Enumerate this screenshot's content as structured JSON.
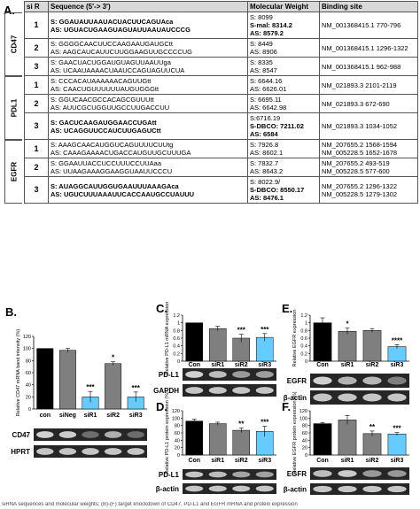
{
  "panel_labels": {
    "A": "A.",
    "B": "B.",
    "C": "C.",
    "D": "D.",
    "E": "E.",
    "F": "F."
  },
  "table": {
    "headers": [
      "si R",
      "Sequence (5'-> 3')",
      "Molecular Weight",
      "Binding site"
    ],
    "groups": [
      {
        "gene": "CD47",
        "rows": [
          {
            "n": "1",
            "s": "S: GGAUAUUAAUACUACUUCAGUAca",
            "as": "AS: UGUACUGAAGUAGUAUUAAUAUCCCG",
            "mw": [
              "S: 8099",
              "S-mal: 8314.2",
              "AS: 8579.2"
            ],
            "site": "NM_001368415.1 770-796",
            "bold": true
          },
          {
            "n": "2",
            "s": "S: GGGGCAACUUCCAAGAAUGAUGCtt",
            "as": "AS: AAGCAUCAUUCUUGGAAGUUGCCCCUG",
            "mw": [
              "S: 8449",
              "AS: 8906"
            ],
            "site": "NM_001368415.1 1296-1322",
            "bold": false
          },
          {
            "n": "3",
            "s": "S: GAACUACUGGAUGUAGUUAAUUga",
            "as": "AS: UCAAUAAAACUAAUCCAGUAGUUCUA",
            "mw": [
              "S: 8335",
              "AS: 8547"
            ],
            "site": "NM_001368415.1 962-988",
            "bold": false
          }
        ]
      },
      {
        "gene": "PDL1",
        "rows": [
          {
            "n": "1",
            "s": "S: CCCACAUAAAAAACAGUUGtt",
            "as": "AS: CAACUGUUUUUUAUGUGGGtt",
            "mw": [
              "S: 6644.16",
              "AS: 6626.01"
            ],
            "site": "NM_021893.3 2101-2119",
            "bold": false
          },
          {
            "n": "2",
            "s": "S: GGUCAACGCCACAGCGUUUtt",
            "as": "AS: AUUCGCUGGUUGCCUUGACCUU",
            "mw": [
              "S: 6695.11",
              "AS: 6642.98"
            ],
            "site": "NM_021893.3 672-690",
            "bold": false
          },
          {
            "n": "3",
            "s": "S: GACUCAAGAUGGAACCUGAtt",
            "as": "AS: UCAGGUUCCAUCUUGAGUCtt",
            "mw": [
              "S:6716.19",
              "S-DBCO: 7211.02",
              "AS: 6584"
            ],
            "site": "NM_021893.3 1034-1052",
            "bold": true
          }
        ]
      },
      {
        "gene": "EGFR",
        "rows": [
          {
            "n": "1",
            "s": "S: AAAGCAACAUGGUCAGUUUUCUUtg",
            "as": "AS: CAAAGAAAACUGACCAUGUUGCUUUGA",
            "mw": [
              "S: 7926.8",
              "AS: 8602.1"
            ],
            "site": "NM_207655.2 1568-1594 NM_005228.5 1652-1678",
            "bold": false
          },
          {
            "n": "2",
            "s": "S: GGAAUUACCUCCUUUCCUUAaa",
            "as": "AS: UUAAGAAAGGAAGGUAAUUCCCU",
            "mw": [
              "S: 7832.7",
              "AS: 8643.2"
            ],
            "site": "NM_207655.2 493-519 NM_005228.5 577-600",
            "bold": false
          },
          {
            "n": "3",
            "s": "S: AUAGGCAUUGGUGAAUUUAAAGAca",
            "as": "AS: UGUCUUUAAAUUCACCAAUGCCUAUUU",
            "mw": [
              "S: 8022.9/",
              "S-DBCO: 8550.17",
              "AS: 8476.1"
            ],
            "site": "NM_207655.2 1296-1322 NM_005228.5 1279-1302",
            "bold": true
          }
        ]
      }
    ]
  },
  "charts": {
    "B": {
      "ylabel": "Relative CD47 mRNA band intensity (%)",
      "yticks": [
        "0",
        "20",
        "40",
        "60",
        "80",
        "100",
        "120"
      ],
      "categories": [
        "con",
        "siNeg",
        "siR1",
        "siR2",
        "siR3"
      ],
      "values": [
        100,
        97,
        20,
        75,
        20
      ],
      "errors": [
        0,
        3,
        9,
        3,
        8
      ],
      "sig": [
        "",
        "",
        "***",
        "*",
        "***"
      ],
      "colors": [
        "#000000",
        "#7f7f7f",
        "#66ccff",
        "#7f7f7f",
        "#66ccff"
      ],
      "blots": [
        "CD47",
        "HPRT"
      ]
    },
    "C": {
      "ylabel": "Relative PD-L1 mRNA expression",
      "yticks": [
        "0",
        "0.2",
        "0.4",
        "0.6",
        "0.8",
        "1",
        "1.2"
      ],
      "categories": [
        "Con",
        "siR1",
        "siR2",
        "siR3"
      ],
      "values": [
        1.0,
        0.85,
        0.6,
        0.62
      ],
      "errors": [
        0,
        0.06,
        0.1,
        0.1
      ],
      "sig": [
        "",
        "",
        "***",
        "***"
      ],
      "colors": [
        "#000000",
        "#7f7f7f",
        "#7f7f7f",
        "#66ccff"
      ],
      "blots": [
        "PD-L1",
        "GAPDH"
      ]
    },
    "D": {
      "ylabel": "Relative PD-L1 protein expression (%)",
      "yticks": [
        "0",
        "20",
        "40",
        "60",
        "80",
        "100",
        "120"
      ],
      "categories": [
        "Con",
        "siR1",
        "siR2",
        "siR3"
      ],
      "values": [
        92,
        85,
        67,
        64
      ],
      "errors": [
        5,
        4,
        6,
        14
      ],
      "sig": [
        "",
        "",
        "**",
        "***"
      ],
      "colors": [
        "#000000",
        "#7f7f7f",
        "#7f7f7f",
        "#66ccff"
      ],
      "blots": [
        "PD-L1",
        "β-actin"
      ]
    },
    "E": {
      "ylabel": "Relative EGFR expression",
      "yticks": [
        "0",
        "0.2",
        "0.4",
        "0.6",
        "0.8",
        "1",
        "1.2"
      ],
      "categories": [
        "Con",
        "siR1",
        "siR2",
        "siR3"
      ],
      "values": [
        1.0,
        0.78,
        0.8,
        0.38
      ],
      "errors": [
        0.13,
        0.08,
        0.05,
        0.05
      ],
      "sig": [
        "",
        "*",
        "",
        "****"
      ],
      "colors": [
        "#000000",
        "#7f7f7f",
        "#7f7f7f",
        "#66ccff"
      ],
      "blots": [
        "EGFR",
        "β-actin"
      ]
    },
    "F": {
      "ylabel": "Relative EGFR protein expression (%)",
      "yticks": [
        "0",
        "20",
        "40",
        "60",
        "80",
        "100",
        "120"
      ],
      "categories": [
        "Con",
        "siR1",
        "siR2",
        "siR3"
      ],
      "values": [
        85,
        95,
        58,
        57
      ],
      "errors": [
        3,
        12,
        7,
        4
      ],
      "sig": [
        "",
        "",
        "**",
        "***"
      ],
      "colors": [
        "#000000",
        "#7f7f7f",
        "#7f7f7f",
        "#66ccff"
      ],
      "blots": [
        "EGFR",
        "β-actin"
      ]
    }
  },
  "caption": "siRNA sequences and molecular weights; (B)-(F) target knockdown of CD47, PD-L1 and EGFR mRNA and protein expression"
}
